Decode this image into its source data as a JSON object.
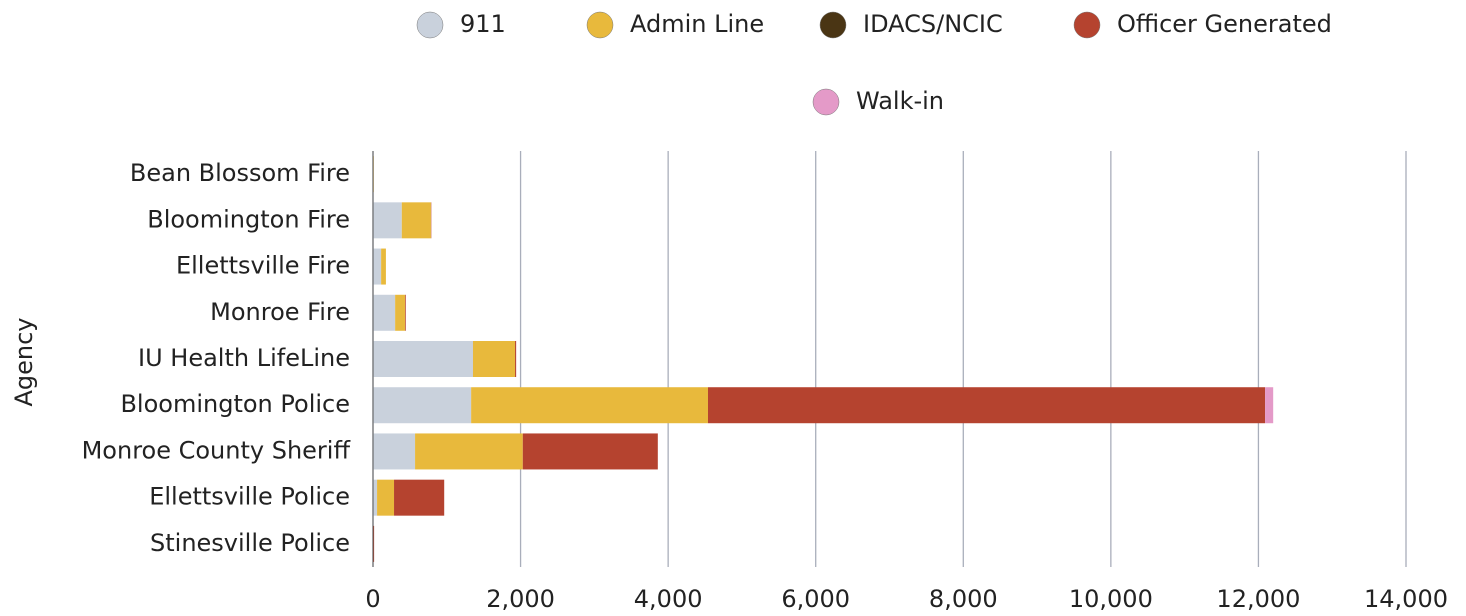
{
  "chart_data": {
    "type": "stacked-barh",
    "y_label": "Agency",
    "categories": [
      "Bean Blossom Fire",
      "Bloomington Fire",
      "Ellettsville Fire",
      "Monroe Fire",
      "IU Health LifeLine",
      "Bloomington Police",
      "Monroe County Sheriff",
      "Ellettsville Police",
      "Stinesville Police"
    ],
    "series": [
      {
        "name": "911",
        "color": "#c9d1dc",
        "values": [
          5,
          390,
          110,
          300,
          1355,
          1330,
          570,
          55,
          0
        ]
      },
      {
        "name": "Admin Line",
        "color": "#e8b93c",
        "values": [
          5,
          395,
          65,
          135,
          570,
          3210,
          1460,
          230,
          0
        ]
      },
      {
        "name": "IDACS/NCIC",
        "color": "#4a3514",
        "values": [
          0,
          0,
          0,
          0,
          0,
          0,
          0,
          0,
          0
        ]
      },
      {
        "name": "Officer Generated",
        "color": "#b5432f",
        "values": [
          0,
          5,
          0,
          10,
          15,
          7550,
          1830,
          680,
          15
        ]
      },
      {
        "name": "Walk-in",
        "color": "#e49ac8",
        "values": [
          0,
          0,
          0,
          0,
          0,
          110,
          0,
          0,
          0
        ]
      }
    ],
    "xlim": [
      0,
      14000
    ],
    "xticks": [
      0,
      {
        "value": 2000,
        "label": "2,000"
      },
      {
        "value": 4000,
        "label": "4,000"
      },
      {
        "value": 6000,
        "label": "6,000"
      },
      {
        "value": 8000,
        "label": "8,000"
      },
      {
        "value": 10000,
        "label": "10,000"
      },
      {
        "value": 12000,
        "label": "12,000"
      },
      {
        "value": 14000,
        "label": "14,000"
      }
    ],
    "grid": true
  }
}
